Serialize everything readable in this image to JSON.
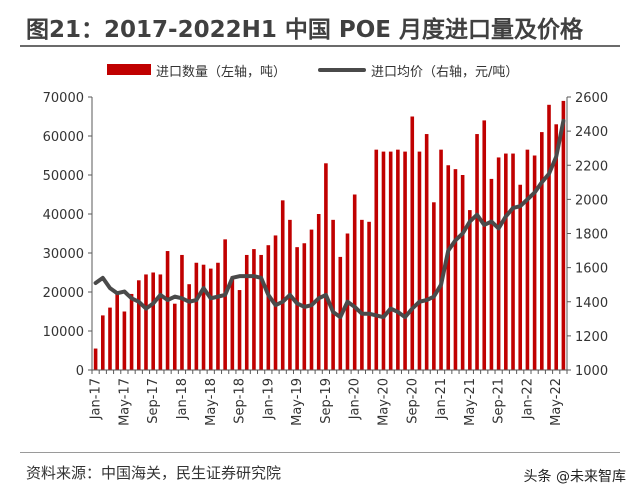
{
  "title": "图21：2017-2022H1 中国 POE 月度进口量及价格",
  "source": "资料来源：中国海关，民生证券研究院",
  "watermark": "头条 @未来智库",
  "colors": {
    "bar": "#c00000",
    "line": "#4a4a4a",
    "axis": "#595959",
    "title_rule": "#6b6b6b"
  },
  "chart_data": {
    "type": "bar",
    "categories": [
      "Jan-17",
      "Feb-17",
      "Mar-17",
      "Apr-17",
      "May-17",
      "Jun-17",
      "Jul-17",
      "Aug-17",
      "Sep-17",
      "Oct-17",
      "Nov-17",
      "Dec-17",
      "Jan-18",
      "Feb-18",
      "Mar-18",
      "Apr-18",
      "May-18",
      "Jun-18",
      "Jul-18",
      "Aug-18",
      "Sep-18",
      "Oct-18",
      "Nov-18",
      "Dec-18",
      "Jan-19",
      "Feb-19",
      "Mar-19",
      "Apr-19",
      "May-19",
      "Jun-19",
      "Jul-19",
      "Aug-19",
      "Sep-19",
      "Oct-19",
      "Nov-19",
      "Dec-19",
      "Jan-20",
      "Feb-20",
      "Mar-20",
      "Apr-20",
      "May-20",
      "Jun-20",
      "Jul-20",
      "Aug-20",
      "Sep-20",
      "Oct-20",
      "Nov-20",
      "Dec-20",
      "Jan-21",
      "Feb-21",
      "Mar-21",
      "Apr-21",
      "May-21",
      "Jun-21",
      "Jul-21",
      "Aug-21",
      "Sep-21",
      "Oct-21",
      "Nov-21",
      "Dec-21",
      "Jan-22",
      "Feb-22",
      "Mar-22",
      "Apr-22",
      "May-22",
      "Jun-22"
    ],
    "x_tick_labels": [
      "Jan-17",
      "May-17",
      "Sep-17",
      "Jan-18",
      "May-18",
      "Sep-18",
      "Jan-19",
      "May-19",
      "Sep-19",
      "Jan-20",
      "May-20",
      "Sep-20",
      "Jan-21",
      "May-21",
      "Sep-21",
      "Jan-22",
      "May-22"
    ],
    "x_tick_every": 4,
    "series": [
      {
        "name": "进口数量（左轴，吨）",
        "type": "bar",
        "axis": "left",
        "values": [
          5500,
          14000,
          16000,
          19500,
          15000,
          19500,
          23000,
          24500,
          25000,
          24500,
          30500,
          17000,
          29500,
          22000,
          27500,
          27000,
          26000,
          27500,
          33500,
          24000,
          20500,
          29500,
          31000,
          29500,
          32000,
          34500,
          43500,
          38500,
          31500,
          32500,
          36000,
          40000,
          53000,
          38500,
          29000,
          35000,
          45000,
          38500,
          38000,
          56500,
          56000,
          56000,
          56500,
          56000,
          65000,
          56000,
          60500,
          43000,
          56500,
          52500,
          51500,
          50000,
          41000,
          60500,
          64000,
          49000,
          54500,
          55500,
          55500,
          47500,
          56500,
          55000,
          61000,
          68000,
          63000,
          69000
        ]
      },
      {
        "name": "进口均价（右轴，元/吨）",
        "type": "line",
        "axis": "right",
        "values": [
          1510,
          1540,
          1480,
          1450,
          1460,
          1420,
          1400,
          1360,
          1390,
          1440,
          1410,
          1430,
          1420,
          1400,
          1410,
          1480,
          1420,
          1430,
          1440,
          1540,
          1550,
          1550,
          1550,
          1540,
          1440,
          1380,
          1400,
          1440,
          1390,
          1370,
          1380,
          1420,
          1440,
          1340,
          1310,
          1400,
          1370,
          1330,
          1330,
          1320,
          1310,
          1360,
          1340,
          1310,
          1360,
          1400,
          1410,
          1430,
          1500,
          1700,
          1760,
          1800,
          1870,
          1910,
          1850,
          1870,
          1830,
          1900,
          1950,
          1960,
          2000,
          2040,
          2100,
          2150,
          2250,
          2460
        ]
      }
    ],
    "ylim_left": [
      0,
      70000
    ],
    "yticks_left": [
      0,
      10000,
      20000,
      30000,
      40000,
      50000,
      60000,
      70000
    ],
    "ylim_right": [
      1000,
      2600
    ],
    "yticks_right": [
      1000,
      1200,
      1400,
      1600,
      1800,
      2000,
      2200,
      2400,
      2600
    ],
    "grid": false,
    "legend_position": "top"
  }
}
